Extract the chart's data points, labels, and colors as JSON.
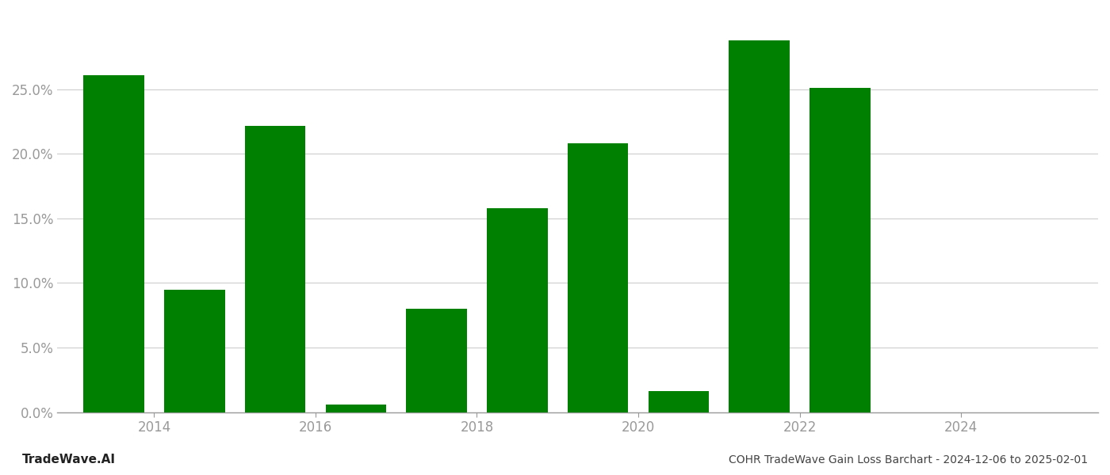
{
  "years": [
    2013,
    2014,
    2015,
    2016,
    2017,
    2018,
    2019,
    2020,
    2021,
    2022,
    2023,
    2024
  ],
  "values": [
    0.261,
    0.095,
    0.222,
    0.006,
    0.08,
    0.158,
    0.208,
    0.016,
    0.288,
    0.251,
    0.0,
    0.0
  ],
  "bar_color": "#008000",
  "background_color": "#ffffff",
  "title": "COHR TradeWave Gain Loss Barchart - 2024-12-06 to 2025-02-01",
  "watermark": "TradeWave.AI",
  "ylim": [
    0,
    0.31
  ],
  "yticks": [
    0.0,
    0.05,
    0.1,
    0.15,
    0.2,
    0.25
  ],
  "xtick_positions": [
    2014,
    2016,
    2018,
    2020,
    2022,
    2024
  ],
  "xlim_left": 2012.3,
  "xlim_right": 2025.2,
  "bar_width": 0.75,
  "grid_color": "#cccccc",
  "axis_color": "#999999",
  "tick_label_color": "#999999",
  "title_color": "#444444",
  "watermark_color": "#222222",
  "title_fontsize": 10,
  "watermark_fontsize": 11,
  "tick_labelsize": 12
}
